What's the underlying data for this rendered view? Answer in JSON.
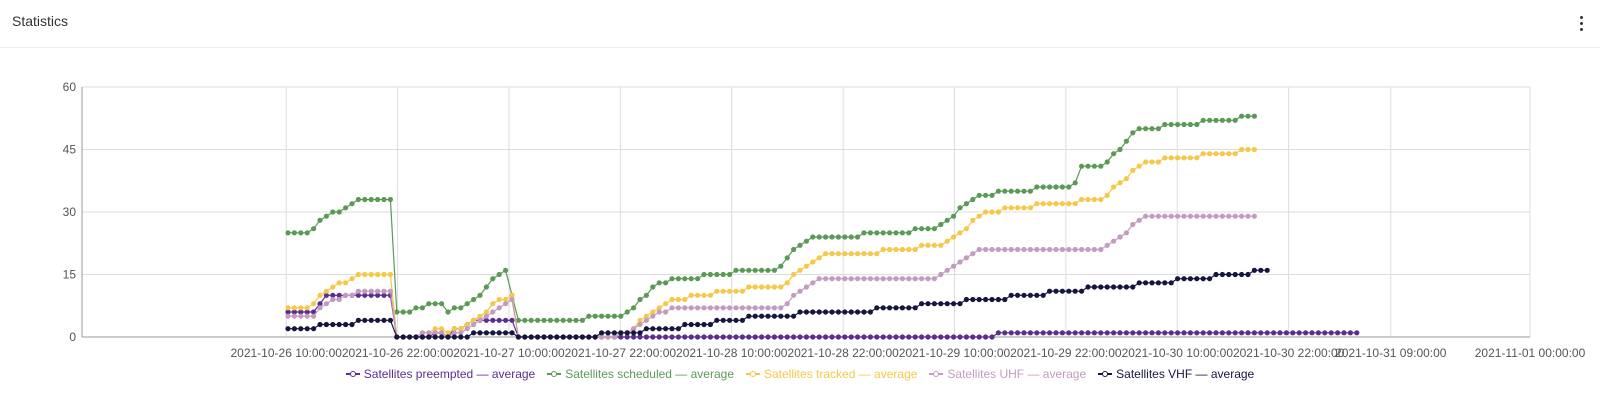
{
  "header": {
    "title": "Statistics"
  },
  "colors": {
    "grid": "#dddddd",
    "axis": "#999999",
    "tick_text": "#555555"
  },
  "chart_data": {
    "type": "line",
    "title": "",
    "xlabel": "",
    "ylabel": "",
    "ylim": [
      0,
      60
    ],
    "yticks": [
      "0",
      "15",
      "30",
      "45",
      "60"
    ],
    "yticks_values": [
      0,
      15,
      30,
      45,
      60
    ],
    "x_start": "2021-10-25 12:00:00",
    "x_step_hours": 1.66,
    "xticks": [
      {
        "label": "2021-10-26 10:00:00",
        "time": "2021-10-26 10:00:00"
      },
      {
        "label": "2021-10-26 22:00:00",
        "time": "2021-10-26 22:00:00"
      },
      {
        "label": "2021-10-27 10:00:00",
        "time": "2021-10-27 10:00:00"
      },
      {
        "label": "2021-10-27 22:00:00",
        "time": "2021-10-27 22:00:00"
      },
      {
        "label": "2021-10-28 10:00:00",
        "time": "2021-10-28 10:00:00"
      },
      {
        "label": "2021-10-28 22:00:00",
        "time": "2021-10-28 22:00:00"
      },
      {
        "label": "2021-10-29 10:00:00",
        "time": "2021-10-29 10:00:00"
      },
      {
        "label": "2021-10-29 22:00:00",
        "time": "2021-10-29 22:00:00"
      },
      {
        "label": "2021-10-30 10:00:00",
        "time": "2021-10-30 10:00:00"
      },
      {
        "label": "2021-10-30 22:00:00",
        "time": "2021-10-30 22:00:00"
      },
      {
        "label": "2021-10-31 09:00:00",
        "time": "2021-10-31 09:00:00"
      },
      {
        "label": "2021-11-01 00:00:00",
        "time": "2021-11-01 00:00:00"
      }
    ],
    "grid": true,
    "legend_position": "bottom-center",
    "series": [
      {
        "name": "Satellites preempted — average",
        "color": "#5b2d8e",
        "start_time": "2021-10-26 00:00:00",
        "values": [
          6,
          6,
          6,
          6,
          6,
          8,
          10,
          10,
          10,
          10,
          10,
          10,
          10,
          10,
          10,
          10,
          10,
          0,
          0,
          0,
          0,
          0,
          0,
          1,
          1,
          0,
          2,
          2,
          3,
          4,
          4,
          4,
          4,
          4,
          4,
          4,
          0,
          0,
          0,
          0,
          0,
          0,
          0,
          0,
          0,
          0,
          0,
          0,
          0,
          0,
          0,
          0,
          0,
          0,
          0,
          0,
          0,
          0,
          0,
          0,
          0,
          0,
          0,
          0,
          0,
          0,
          0,
          0,
          0,
          0,
          0,
          0,
          0,
          0,
          0,
          0,
          0,
          0,
          0,
          0,
          0,
          0,
          0,
          0,
          0,
          0,
          0,
          0,
          0,
          0,
          0,
          0,
          0,
          0,
          0,
          0,
          0,
          0,
          0,
          0,
          0,
          0,
          0,
          0,
          0,
          0,
          0,
          0,
          0,
          0,
          0,
          1,
          1,
          1,
          1,
          1,
          1,
          1,
          1,
          1,
          1,
          1,
          1,
          1,
          1,
          1,
          1,
          1,
          1,
          1,
          1,
          1,
          1,
          1,
          1,
          1,
          1,
          1,
          1,
          1,
          1,
          1,
          1,
          1,
          1,
          1,
          1,
          1,
          1,
          1,
          1,
          1,
          1,
          1,
          1,
          1,
          1,
          1,
          1,
          1,
          1,
          1,
          1,
          1,
          1,
          1,
          1,
          1
        ]
      },
      {
        "name": "Satellites scheduled — average",
        "color": "#5a9a55",
        "start_time": "2021-10-26 00:00:00",
        "values": [
          25,
          25,
          25,
          25,
          26,
          28,
          29,
          30,
          30,
          31,
          32,
          33,
          33,
          33,
          33,
          33,
          33,
          6,
          6,
          6,
          7,
          7,
          8,
          8,
          8,
          6,
          7,
          7,
          8,
          9,
          10,
          12,
          14,
          15,
          16,
          10,
          4,
          4,
          4,
          4,
          4,
          4,
          4,
          4,
          4,
          4,
          4,
          5,
          5,
          5,
          5,
          5,
          5,
          6,
          7,
          9,
          10,
          12,
          13,
          13,
          14,
          14,
          14,
          14,
          14,
          15,
          15,
          15,
          15,
          15,
          16,
          16,
          16,
          16,
          16,
          16,
          16,
          17,
          19,
          21,
          22,
          23,
          24,
          24,
          24,
          24,
          24,
          24,
          24,
          24,
          25,
          25,
          25,
          25,
          25,
          25,
          25,
          25,
          26,
          26,
          26,
          26,
          27,
          28,
          29,
          31,
          32,
          33,
          34,
          34,
          34,
          35,
          35,
          35,
          35,
          35,
          35,
          36,
          36,
          36,
          36,
          36,
          36,
          37,
          41,
          41,
          41,
          41,
          42,
          44,
          45,
          47,
          49,
          50,
          50,
          50,
          50,
          51,
          51,
          51,
          51,
          51,
          51,
          52,
          52,
          52,
          52,
          52,
          52,
          53,
          53,
          53
        ]
      },
      {
        "name": "Satellites tracked — average",
        "color": "#f5c84a",
        "start_time": "2021-10-26 00:00:00",
        "values": [
          7,
          7,
          7,
          7,
          8,
          10,
          11,
          12,
          13,
          13,
          14,
          15,
          15,
          15,
          15,
          15,
          15,
          0,
          0,
          0,
          0,
          1,
          1,
          2,
          2,
          1,
          2,
          2,
          3,
          4,
          5,
          6,
          8,
          9,
          9,
          10,
          0,
          0,
          0,
          0,
          0,
          0,
          0,
          0,
          0,
          0,
          0,
          0,
          0,
          0,
          0,
          0,
          1,
          1,
          2,
          4,
          5,
          6,
          7,
          8,
          9,
          9,
          9,
          10,
          10,
          10,
          10,
          11,
          11,
          11,
          11,
          11,
          12,
          12,
          12,
          12,
          12,
          12,
          13,
          15,
          16,
          17,
          18,
          19,
          20,
          20,
          20,
          20,
          20,
          20,
          20,
          20,
          20,
          21,
          21,
          21,
          21,
          21,
          21,
          22,
          22,
          22,
          22,
          23,
          24,
          25,
          26,
          28,
          29,
          30,
          30,
          30,
          31,
          31,
          31,
          31,
          31,
          32,
          32,
          32,
          32,
          32,
          32,
          32,
          33,
          33,
          33,
          33,
          34,
          36,
          37,
          38,
          40,
          41,
          42,
          42,
          42,
          43,
          43,
          43,
          43,
          43,
          43,
          44,
          44,
          44,
          44,
          44,
          44,
          45,
          45,
          45
        ]
      },
      {
        "name": "Satellites UHF — average",
        "color": "#c49bc0",
        "start_time": "2021-10-26 00:00:00",
        "values": [
          5,
          5,
          5,
          5,
          5,
          7,
          8,
          9,
          9,
          10,
          10,
          11,
          11,
          11,
          11,
          11,
          11,
          0,
          0,
          0,
          0,
          1,
          1,
          1,
          1,
          0,
          1,
          1,
          2,
          3,
          4,
          5,
          6,
          7,
          8,
          9,
          0,
          0,
          0,
          0,
          0,
          0,
          0,
          0,
          0,
          0,
          0,
          0,
          0,
          0,
          0,
          0,
          1,
          1,
          2,
          3,
          4,
          5,
          6,
          6,
          7,
          7,
          7,
          7,
          7,
          7,
          7,
          7,
          7,
          7,
          7,
          7,
          7,
          7,
          7,
          7,
          7,
          7,
          8,
          10,
          11,
          12,
          13,
          14,
          14,
          14,
          14,
          14,
          14,
          14,
          14,
          14,
          14,
          14,
          14,
          14,
          14,
          14,
          14,
          14,
          14,
          14,
          15,
          16,
          17,
          18,
          19,
          20,
          21,
          21,
          21,
          21,
          21,
          21,
          21,
          21,
          21,
          21,
          21,
          21,
          21,
          21,
          21,
          21,
          21,
          21,
          21,
          21,
          22,
          23,
          24,
          25,
          27,
          28,
          29,
          29,
          29,
          29,
          29,
          29,
          29,
          29,
          29,
          29,
          29,
          29,
          29,
          29,
          29,
          29,
          29,
          29
        ]
      },
      {
        "name": "Satellites VHF — average",
        "color": "#151540",
        "start_time": "2021-10-26 00:00:00",
        "values": [
          2,
          2,
          2,
          2,
          2,
          3,
          3,
          3,
          3,
          3,
          3,
          4,
          4,
          4,
          4,
          4,
          4,
          0,
          0,
          0,
          0,
          0,
          0,
          0,
          0,
          0,
          0,
          0,
          0,
          1,
          1,
          1,
          1,
          1,
          1,
          1,
          0,
          0,
          0,
          0,
          0,
          0,
          0,
          0,
          0,
          0,
          0,
          0,
          0,
          1,
          1,
          1,
          1,
          1,
          1,
          1,
          2,
          2,
          2,
          2,
          2,
          2,
          3,
          3,
          3,
          3,
          3,
          4,
          4,
          4,
          4,
          4,
          5,
          5,
          5,
          5,
          5,
          5,
          5,
          5,
          6,
          6,
          6,
          6,
          6,
          6,
          6,
          6,
          6,
          6,
          6,
          6,
          7,
          7,
          7,
          7,
          7,
          7,
          7,
          8,
          8,
          8,
          8,
          8,
          8,
          8,
          9,
          9,
          9,
          9,
          9,
          9,
          9,
          10,
          10,
          10,
          10,
          10,
          10,
          11,
          11,
          11,
          11,
          11,
          11,
          12,
          12,
          12,
          12,
          12,
          12,
          12,
          12,
          13,
          13,
          13,
          13,
          13,
          13,
          14,
          14,
          14,
          14,
          14,
          14,
          15,
          15,
          15,
          15,
          15,
          15,
          16,
          16,
          16
        ]
      }
    ]
  }
}
